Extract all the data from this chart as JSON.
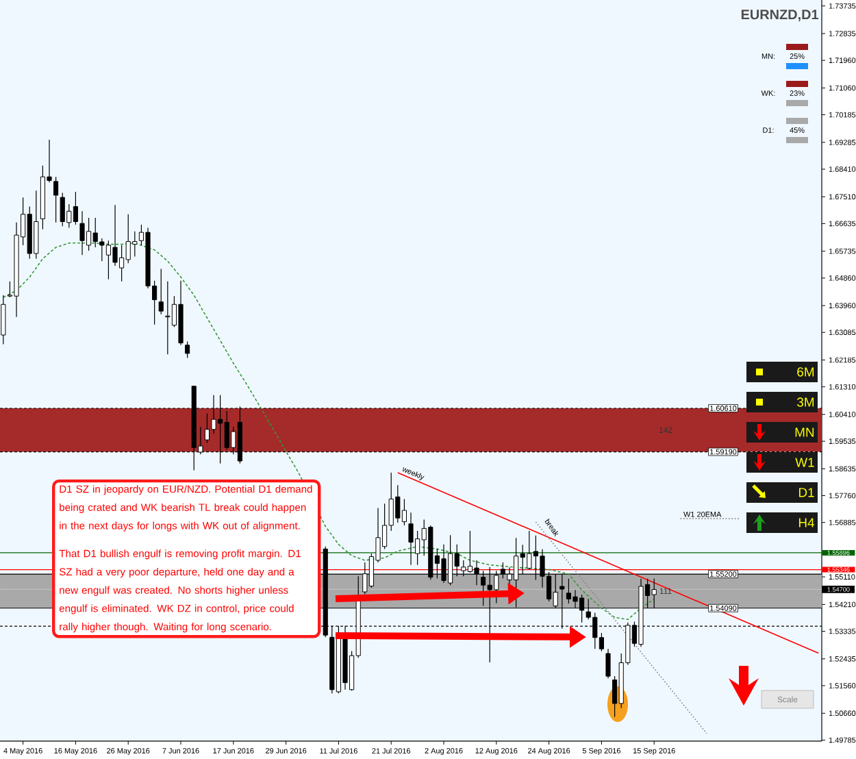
{
  "chart_data": {
    "type": "candlestick",
    "title": "EURNZD,D1",
    "categories": [
      null,
      null,
      null,
      "4 May 2016",
      null,
      null,
      null,
      null,
      null,
      null,
      null,
      "16 May 2016",
      null,
      null,
      null,
      null,
      null,
      null,
      null,
      "26 May 2016",
      null,
      null,
      null,
      null,
      null,
      null,
      null,
      "7 Jun 2016",
      null,
      null,
      null,
      null,
      null,
      null,
      null,
      "17 Jun 2016",
      null,
      null,
      null,
      null,
      null,
      null,
      null,
      "29 Jun 2016",
      null,
      null,
      null,
      null,
      null,
      null,
      null,
      "11 Jul 2016",
      null,
      null,
      null,
      null,
      null,
      null,
      null,
      "21 Jul 2016",
      null,
      null,
      null,
      null,
      null,
      null,
      null,
      "2 Aug 2016",
      null,
      null,
      null,
      null,
      null,
      null,
      null,
      "12 Aug 2016",
      null,
      null,
      null,
      null,
      null,
      null,
      null,
      "24 Aug 2016",
      null,
      null,
      null,
      null,
      null,
      null,
      null,
      "5 Sep 2016",
      null,
      null,
      null,
      null,
      null,
      null,
      null,
      "15 Sep 2016",
      null,
      null,
      null,
      null,
      null,
      null,
      null,
      null,
      null,
      null,
      null,
      null,
      null,
      null,
      null,
      null,
      null,
      null,
      null,
      null,
      null,
      null,
      null,
      null,
      null
    ],
    "ohlc": [
      [
        1.63,
        1.643,
        1.627,
        1.64
      ],
      [
        1.6427,
        1.6475,
        1.6423,
        1.643
      ],
      [
        1.6427,
        1.6667,
        1.6359,
        1.6626
      ],
      [
        1.662,
        1.6749,
        1.6593,
        1.6694
      ],
      [
        1.6694,
        1.6719,
        1.6549,
        1.6566
      ],
      [
        1.6566,
        1.6771,
        1.6549,
        1.667
      ],
      [
        1.6679,
        1.6853,
        1.6645,
        1.6816
      ],
      [
        1.6816,
        1.6937,
        1.6798,
        1.6804
      ],
      [
        1.6801,
        1.6816,
        1.6667,
        1.6756
      ],
      [
        1.6749,
        1.6764,
        1.6655,
        1.667
      ],
      [
        1.6667,
        1.6727,
        1.665,
        1.6704
      ],
      [
        1.6719,
        1.6767,
        1.666,
        1.667
      ],
      [
        1.6664,
        1.6704,
        1.6561,
        1.6608
      ],
      [
        1.6593,
        1.6682,
        1.6575,
        1.6638
      ],
      [
        1.6633,
        1.6682,
        1.6586,
        1.6605
      ],
      [
        1.6604,
        1.6615,
        1.6541,
        1.6593
      ],
      [
        1.6561,
        1.6608,
        1.6482,
        1.6593
      ],
      [
        1.6586,
        1.6724,
        1.6526,
        1.6537
      ],
      [
        1.6519,
        1.6593,
        1.6475,
        1.6552
      ],
      [
        1.6546,
        1.6694,
        1.6534,
        1.6605
      ],
      [
        1.6596,
        1.6638,
        1.6556,
        1.6605
      ],
      [
        1.6608,
        1.666,
        1.6593,
        1.6635
      ],
      [
        1.6635,
        1.665,
        1.6452,
        1.646
      ],
      [
        1.646,
        1.6477,
        1.6334,
        1.6415
      ],
      [
        1.6408,
        1.6516,
        1.6368,
        1.6378
      ],
      [
        1.6359,
        1.6475,
        1.6237,
        1.6362
      ],
      [
        1.6332,
        1.6427,
        1.6326,
        1.64
      ],
      [
        1.64,
        1.6477,
        1.6267,
        1.6274
      ],
      [
        1.6267,
        1.6279,
        1.6225,
        1.624
      ],
      [
        1.6133,
        1.6133,
        1.5859,
        1.5933
      ],
      [
        1.5918,
        1.6,
        1.5911,
        1.5938
      ],
      [
        1.5958,
        1.6044,
        1.5948,
        1.5992
      ],
      [
        1.5992,
        1.6104,
        1.5978,
        1.6025
      ],
      [
        1.6025,
        1.6104,
        1.5881,
        1.6012
      ],
      [
        1.6015,
        1.6052,
        1.5926,
        1.5933
      ],
      [
        1.5933,
        1.6,
        1.5911,
        1.5985
      ],
      [
        1.6015,
        1.6067,
        1.5881,
        1.5889
      ],
      null,
      null,
      null,
      null,
      null,
      null,
      null,
      null,
      null,
      null,
      null,
      null,
      [
        1.5602,
        1.561,
        1.5314,
        1.5321
      ],
      [
        1.5314,
        1.5351,
        1.5131,
        1.5143
      ],
      [
        1.5136,
        1.5351,
        1.5131,
        1.5328
      ],
      [
        1.5328,
        1.5351,
        1.5143,
        1.5166
      ],
      [
        1.5143,
        1.5269,
        1.514,
        1.5254
      ],
      [
        1.5254,
        1.5513,
        1.5247,
        1.5432
      ],
      [
        1.5462,
        1.5558,
        1.5454,
        1.5521
      ],
      [
        1.5481,
        1.5587,
        1.5476,
        1.5577
      ],
      [
        1.5565,
        1.5736,
        1.5558,
        1.5639
      ],
      [
        1.561,
        1.575,
        1.5602,
        1.5679
      ],
      [
        1.5679,
        1.5851,
        1.5661,
        1.5765
      ],
      [
        1.5772,
        1.581,
        1.5688,
        1.5703
      ],
      [
        1.5691,
        1.5765,
        1.5679,
        1.5728
      ],
      [
        1.5684,
        1.5721,
        1.555,
        1.5624
      ],
      [
        1.5587,
        1.5661,
        1.555,
        1.5635
      ],
      [
        1.5632,
        1.5698,
        1.558,
        1.5669
      ],
      [
        1.5673,
        1.5679,
        1.5502,
        1.551
      ],
      [
        1.558,
        1.5602,
        1.5506,
        1.5555
      ],
      [
        1.557,
        1.5617,
        1.5491,
        1.5499
      ],
      [
        1.5491,
        1.5647,
        1.5484,
        1.5587
      ],
      [
        1.5587,
        1.5617,
        1.5513,
        1.5546
      ],
      [
        1.5531,
        1.5565,
        1.5513,
        1.5543
      ],
      [
        1.5528,
        1.5661,
        1.5525,
        1.5546
      ],
      [
        1.554,
        1.5565,
        1.5484,
        1.5521
      ],
      [
        1.551,
        1.5531,
        1.5417,
        1.5484
      ],
      [
        1.5484,
        1.5543,
        1.5232,
        1.5469
      ],
      [
        1.5469,
        1.5531,
        1.5425,
        1.5516
      ],
      [
        1.5536,
        1.5558,
        1.5506,
        1.5521
      ],
      [
        1.5501,
        1.5542,
        1.5483,
        1.552
      ],
      [
        1.5501,
        1.5638,
        1.5412,
        1.5579
      ],
      [
        1.5587,
        1.5616,
        1.552,
        1.5575
      ],
      [
        1.5539,
        1.5661,
        1.5535,
        1.5587
      ],
      [
        1.5594,
        1.5646,
        1.5501,
        1.5579
      ],
      [
        1.5579,
        1.5601,
        1.5476,
        1.5513
      ],
      [
        1.5513,
        1.5527,
        1.5431,
        1.5439
      ],
      [
        1.5416,
        1.552,
        1.5409,
        1.5461
      ],
      [
        1.548,
        1.552,
        1.5342,
        1.5471
      ],
      [
        1.5458,
        1.5505,
        1.5424,
        1.5439
      ],
      [
        1.5446,
        1.5468,
        1.5409,
        1.5431
      ],
      [
        1.5442,
        1.5453,
        1.5362,
        1.5402
      ],
      [
        1.5397,
        1.5439,
        1.5372,
        1.5379
      ],
      [
        1.5379,
        1.5394,
        1.5276,
        1.5313
      ],
      [
        1.5313,
        1.5328,
        1.5268,
        1.5276
      ],
      [
        1.5261,
        1.5276,
        1.518,
        1.5187
      ],
      [
        1.5175,
        1.5187,
        1.5054,
        1.5098
      ],
      [
        1.5098,
        1.5261,
        1.5083,
        1.5231
      ],
      [
        1.5231,
        1.5362,
        1.5224,
        1.5353
      ],
      [
        1.5353,
        1.5365,
        1.5283,
        1.5294
      ],
      [
        1.5291,
        1.5505,
        1.5283,
        1.548
      ],
      [
        1.5486,
        1.5505,
        1.5409,
        1.545
      ],
      [
        1.5453,
        1.5505,
        1.5409,
        1.547
      ],
      null,
      null,
      null,
      null,
      null,
      null,
      null,
      null,
      null,
      null,
      null,
      null,
      null,
      null,
      null,
      null,
      null,
      null,
      null,
      null,
      null,
      null,
      null,
      null,
      null
    ],
    "ylim": [
      1.4975,
      1.7393
    ],
    "yticks": [
      {
        "value": 1.73735,
        "label": "1.73735"
      },
      {
        "value": 1.72835,
        "label": "1.72835"
      },
      {
        "value": 1.7196,
        "label": "1.71960"
      },
      {
        "value": 1.7106,
        "label": "1.71060"
      },
      {
        "value": 1.70185,
        "label": "1.70185"
      },
      {
        "value": 1.69285,
        "label": "1.69285"
      },
      {
        "value": 1.6841,
        "label": "1.68410"
      },
      {
        "value": 1.6751,
        "label": "1.67510"
      },
      {
        "value": 1.66635,
        "label": "1.66635"
      },
      {
        "value": 1.65735,
        "label": "1.65735"
      },
      {
        "value": 1.6486,
        "label": "1.64860"
      },
      {
        "value": 1.6396,
        "label": "1.63960"
      },
      {
        "value": 1.63085,
        "label": "1.63085"
      },
      {
        "value": 1.62185,
        "label": "1.62185"
      },
      {
        "value": 1.6131,
        "label": "1.61310"
      },
      {
        "value": 1.6041,
        "label": "1.60410"
      },
      {
        "value": 1.59535,
        "label": "1.59535"
      },
      {
        "value": 1.58635,
        "label": "1.58635"
      },
      {
        "value": 1.5776,
        "label": "1.57760"
      },
      {
        "value": 1.56885,
        "label": "1.56885"
      },
      {
        "value": 1.5511,
        "label": "1.55110"
      },
      {
        "value": 1.5421,
        "label": "1.54210"
      },
      {
        "value": 1.53335,
        "label": "1.53335"
      },
      {
        "value": 1.52435,
        "label": "1.52435"
      },
      {
        "value": 1.5156,
        "label": "1.51560"
      },
      {
        "value": 1.5066,
        "label": "1.50660"
      },
      {
        "value": 1.49785,
        "label": "1.49785"
      }
    ],
    "series": [
      {
        "type": "line",
        "color": "#339933",
        "line_style": "dashed",
        "values": [
          1.6423,
          null,
          1.6445,
          null,
          1.6489,
          null,
          1.6549,
          null,
          1.6586,
          null,
          1.66,
          null,
          1.66,
          null,
          1.66,
          null,
          1.6596,
          null,
          1.6596,
          null,
          1.66,
          null,
          null,
          1.6578,
          null,
          1.6541,
          null,
          1.6489,
          null,
          1.643,
          null,
          1.6356,
          null,
          1.6282,
          null,
          1.6208,
          null,
          1.614,
          null,
          null,
          1.6032,
          null,
          null,
          1.5921,
          null,
          1.5847,
          null,
          null,
          null,
          1.5676,
          null,
          1.5617,
          null,
          1.558,
          null,
          1.5565,
          null,
          null,
          1.5573,
          null,
          1.5595,
          null,
          null,
          1.561,
          null,
          null,
          1.5602,
          null,
          null,
          1.5587,
          null,
          1.5565,
          null,
          null,
          1.555,
          null,
          null,
          null,
          1.5542,
          null,
          null,
          null,
          null,
          1.5535,
          null,
          null,
          1.552,
          null,
          1.5468,
          null,
          null,
          1.5409,
          null,
          1.5379,
          null,
          1.5372,
          null,
          1.5409,
          null,
          1.5439,
          null,
          null,
          null,
          null,
          null,
          null,
          null,
          null,
          null,
          null,
          null,
          null,
          null,
          null,
          null,
          null,
          null,
          null,
          null,
          null,
          null,
          null,
          null,
          null,
          null
        ]
      },
      {
        "type": "line",
        "name": "weekly",
        "color": "#ff0000",
        "line_style": "solid",
        "values": [
          null,
          null,
          null,
          null,
          null,
          null,
          null,
          null,
          null,
          null,
          null,
          null,
          null,
          null,
          null,
          null,
          null,
          null,
          null,
          null,
          null,
          null,
          null,
          null,
          null,
          null,
          null,
          null,
          null,
          null,
          null,
          null,
          null,
          null,
          null,
          null,
          null,
          null,
          null,
          null,
          null,
          null,
          null,
          null,
          null,
          null,
          null,
          null,
          null,
          null,
          null,
          null,
          null,
          null,
          null,
          null,
          null,
          null,
          null,
          null,
          1.5851,
          null,
          null,
          null,
          null,
          null,
          null,
          null,
          null,
          null,
          null,
          null,
          null,
          null,
          null,
          null,
          null,
          null,
          null,
          null,
          null,
          null,
          null,
          null,
          null,
          null,
          null,
          null,
          null,
          null,
          null,
          null,
          null,
          null,
          null,
          null,
          null,
          null,
          null,
          null,
          null,
          null,
          null,
          null,
          null,
          null,
          null,
          null,
          null,
          null,
          null,
          null,
          null,
          null,
          null,
          null,
          null,
          null,
          null,
          null,
          null,
          null,
          null,
          null,
          1.5262
        ]
      },
      {
        "type": "line",
        "color": "#808080",
        "line_style": "dotted",
        "values": [
          null,
          null,
          null,
          null,
          null,
          null,
          null,
          null,
          null,
          null,
          null,
          null,
          null,
          null,
          null,
          null,
          null,
          null,
          null,
          null,
          null,
          null,
          null,
          null,
          null,
          null,
          null,
          null,
          null,
          null,
          null,
          null,
          null,
          null,
          null,
          null,
          null,
          null,
          null,
          null,
          null,
          null,
          null,
          null,
          null,
          null,
          null,
          null,
          null,
          null,
          null,
          null,
          null,
          null,
          null,
          null,
          null,
          null,
          null,
          null,
          null,
          null,
          null,
          null,
          null,
          null,
          null,
          null,
          null,
          null,
          null,
          null,
          null,
          null,
          null,
          null,
          null,
          null,
          null,
          null,
          null,
          1.569,
          null,
          null,
          null,
          null,
          null,
          null,
          null,
          null,
          null,
          null,
          null,
          null,
          null,
          null,
          null,
          null,
          null,
          null,
          null,
          null,
          null,
          null,
          null,
          null,
          null,
          1.5,
          null,
          null,
          null,
          null,
          null,
          null,
          null,
          null,
          null,
          null,
          null,
          null,
          null,
          null,
          null,
          null,
          null
        ]
      },
      {
        "type": "line",
        "name": "W1 20EMA",
        "color": "#808080",
        "line_style": "dotted",
        "values": [
          null,
          null,
          null,
          null,
          null,
          null,
          null,
          null,
          null,
          null,
          null,
          null,
          null,
          null,
          null,
          null,
          null,
          null,
          null,
          null,
          null,
          null,
          null,
          null,
          null,
          null,
          null,
          null,
          null,
          null,
          null,
          null,
          null,
          null,
          null,
          null,
          null,
          null,
          null,
          null,
          null,
          null,
          null,
          null,
          null,
          null,
          null,
          null,
          null,
          null,
          null,
          null,
          null,
          null,
          null,
          null,
          null,
          null,
          null,
          null,
          null,
          null,
          null,
          null,
          null,
          null,
          null,
          null,
          null,
          null,
          null,
          null,
          null,
          null,
          null,
          null,
          null,
          null,
          null,
          null,
          null,
          null,
          null,
          null,
          null,
          null,
          null,
          null,
          null,
          null,
          null,
          null,
          null,
          null,
          null,
          null,
          null,
          null,
          null,
          null,
          null,
          null,
          null,
          1.5701,
          null,
          null,
          null,
          null,
          null,
          null,
          null,
          null,
          1.5701,
          null,
          null,
          null,
          null,
          null,
          null,
          null,
          null,
          null,
          null,
          null,
          null
        ]
      }
    ],
    "bands": [
      {
        "axis": "y",
        "from": 1.5919,
        "to": 1.6061,
        "label": "142",
        "color": "#a52a2a"
      },
      {
        "axis": "y",
        "from": 1.5409,
        "to": 1.552,
        "label": "111",
        "color": "#a9a9a9"
      }
    ],
    "ref_lines": [
      {
        "axis": "y",
        "value": 1.6061,
        "label": "1.60610",
        "color": "#000000",
        "line_style": "dashed"
      },
      {
        "axis": "y",
        "value": 1.5919,
        "label": "1.59190",
        "color": "#000000",
        "line_style": "dashed"
      },
      {
        "axis": "y",
        "value": 1.552,
        "label": "1.55200",
        "color": "#000000",
        "line_style": "solid"
      },
      {
        "axis": "y",
        "value": 1.5409,
        "label": "1.54090",
        "color": "#000000",
        "line_style": "solid"
      },
      {
        "axis": "y",
        "value": 1.535,
        "color": "#000000",
        "line_style": "dashed"
      },
      {
        "axis": "y",
        "value": 1.55896,
        "label": "1.55896",
        "color": "#006400",
        "line_style": "solid"
      },
      {
        "axis": "y",
        "value": 1.55346,
        "label": "1.55346",
        "color": "#ff0000",
        "line_style": "solid"
      },
      {
        "axis": "y",
        "value": 1.547,
        "label": "1.54700",
        "color": "#c0c0c0",
        "line_style": "solid"
      }
    ],
    "annotations": [
      "break",
      "D1 SZ in jeopardy on EUR/NZD. Potential D1 demand being crated and WK bearish TL break could happen in the next days for longs with WK out of alignment.",
      "That D1 bullish engulf is removing profit margin. D1 SZ had a very poor departure, held one day and a new engulf was created. No shorts higher unless engulf is eliminated. WK DZ in control, price could rally higher though. Waiting for long scenario.",
      "6M",
      "3M",
      "MN",
      "W1",
      "D1",
      "H4",
      "MN:",
      "25%",
      "WK:",
      "23%",
      "D1:",
      "45%",
      "Scale"
    ]
  }
}
